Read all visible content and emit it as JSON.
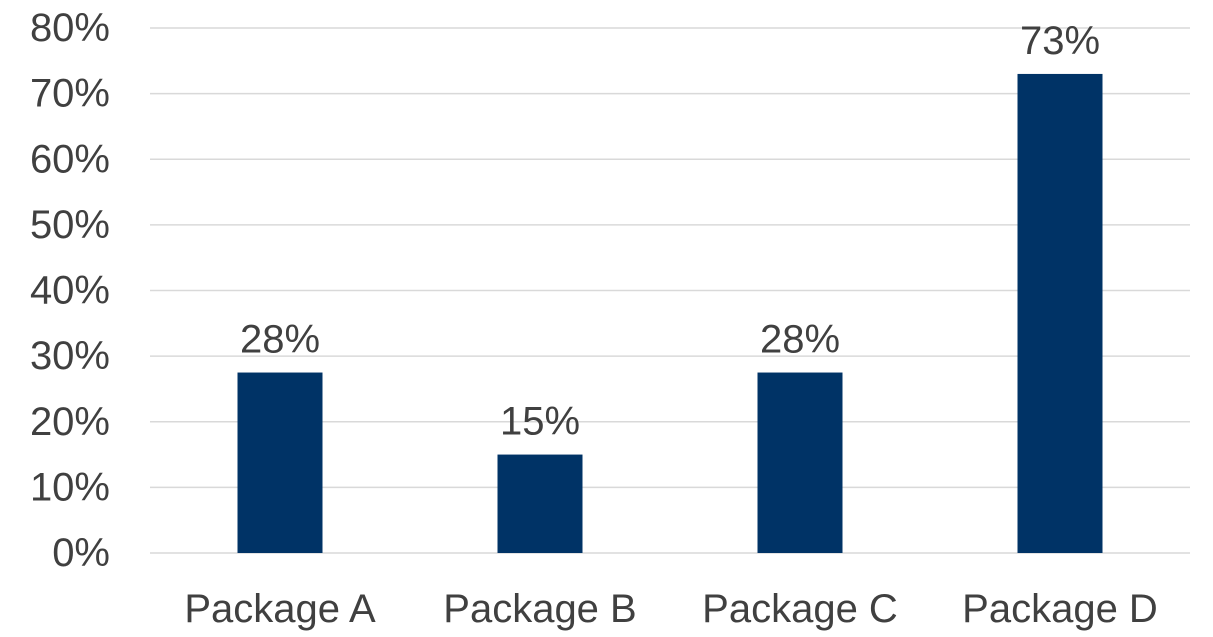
{
  "chart_data": {
    "type": "bar",
    "title": "",
    "xlabel": "",
    "ylabel": "",
    "categories": [
      "Package A",
      "Package B",
      "Package C",
      "Package D"
    ],
    "values": [
      0.275,
      0.15,
      0.275,
      0.73
    ],
    "data_labels": [
      "28%",
      "15%",
      "28%",
      "73%"
    ],
    "ylim": [
      0,
      0.8
    ],
    "yticks": [
      0,
      0.1,
      0.2,
      0.3,
      0.4,
      0.5,
      0.6,
      0.7,
      0.8
    ],
    "ytick_labels": [
      "0%",
      "10%",
      "20%",
      "30%",
      "40%",
      "50%",
      "60%",
      "70%",
      "80%"
    ],
    "grid": true,
    "legend": "none",
    "bar_color": "#003366",
    "text_color": "#404040",
    "grid_color": "#d9d9d9"
  }
}
